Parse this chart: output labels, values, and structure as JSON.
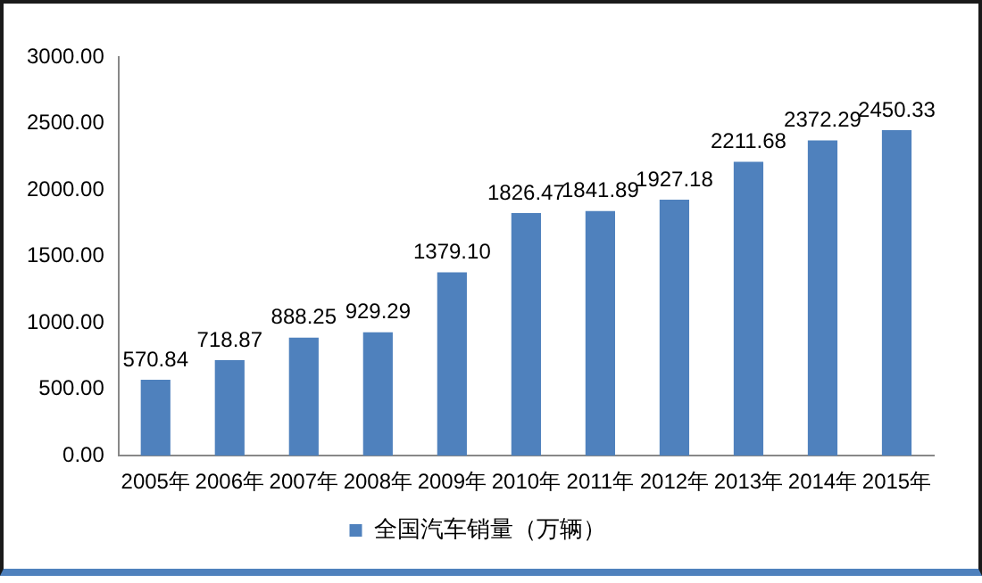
{
  "chart_data": {
    "type": "bar",
    "categories": [
      "2005年",
      "2006年",
      "2007年",
      "2008年",
      "2009年",
      "2010年",
      "2011年",
      "2012年",
      "2013年",
      "2014年",
      "2015年"
    ],
    "series": [
      {
        "name": "全国汽车销量（万辆）",
        "color": "#4f81bd",
        "values": [
          570.84,
          718.87,
          888.25,
          929.29,
          1379.1,
          1826.47,
          1841.89,
          1927.18,
          2211.68,
          2372.29,
          2450.33
        ],
        "value_labels": [
          "570.84",
          "718.87",
          "888.25",
          "929.29",
          "1379.10",
          "1826.47",
          "1841.89",
          "1927.18",
          "2211.68",
          "2372.29",
          "2450.33"
        ]
      }
    ],
    "ylim": [
      0,
      3000
    ],
    "yticks": [
      {
        "value": 0,
        "label": "0.00"
      },
      {
        "value": 500,
        "label": "500.00"
      },
      {
        "value": 1000,
        "label": "1000.00"
      },
      {
        "value": 1500,
        "label": "1500.00"
      },
      {
        "value": 2000,
        "label": "2000.00"
      },
      {
        "value": 2500,
        "label": "2500.00"
      },
      {
        "value": 3000,
        "label": "3000.00"
      }
    ],
    "grid": false,
    "legend": "bottom"
  }
}
